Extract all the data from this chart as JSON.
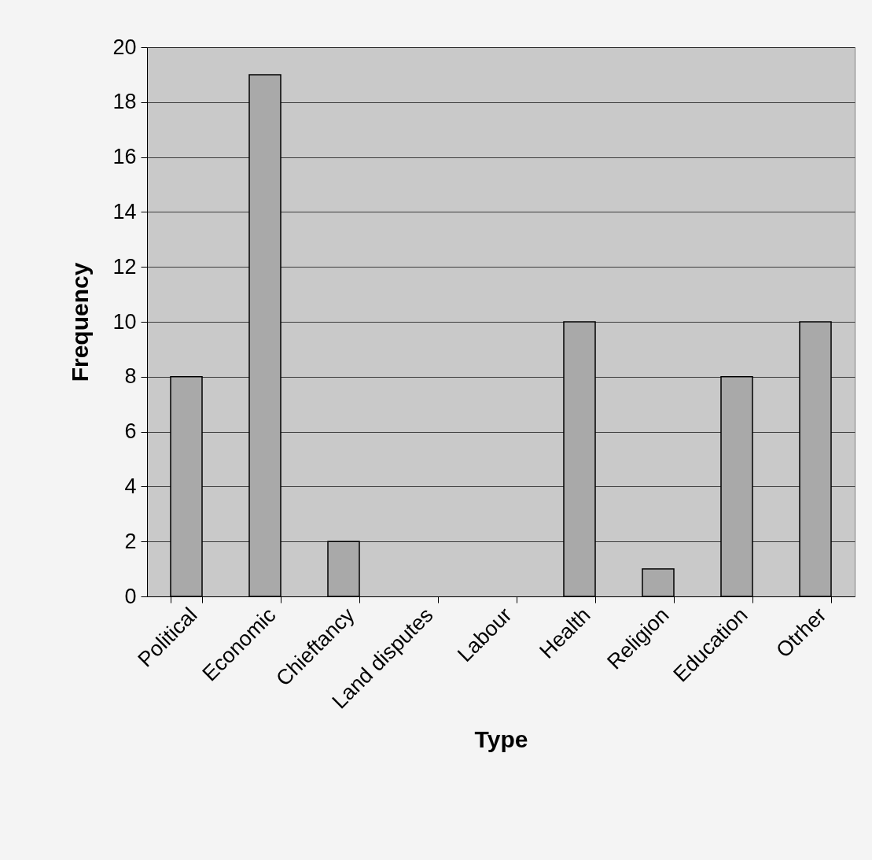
{
  "chart_data": {
    "type": "bar",
    "xlabel": "Type",
    "ylabel": "Frequency",
    "categories": [
      "Political",
      "Economic",
      "Chieftancy",
      "Land disputes",
      "Labour",
      "Health",
      "Religion",
      "Education",
      "Otrher"
    ],
    "values": [
      8,
      19,
      2,
      0,
      0,
      10,
      1,
      8,
      10
    ],
    "color": "#a9a9a9",
    "ylim": [
      0,
      20
    ],
    "yticks": [
      0,
      2,
      4,
      6,
      8,
      10,
      12,
      14,
      16,
      18,
      20
    ],
    "grid": "y"
  }
}
